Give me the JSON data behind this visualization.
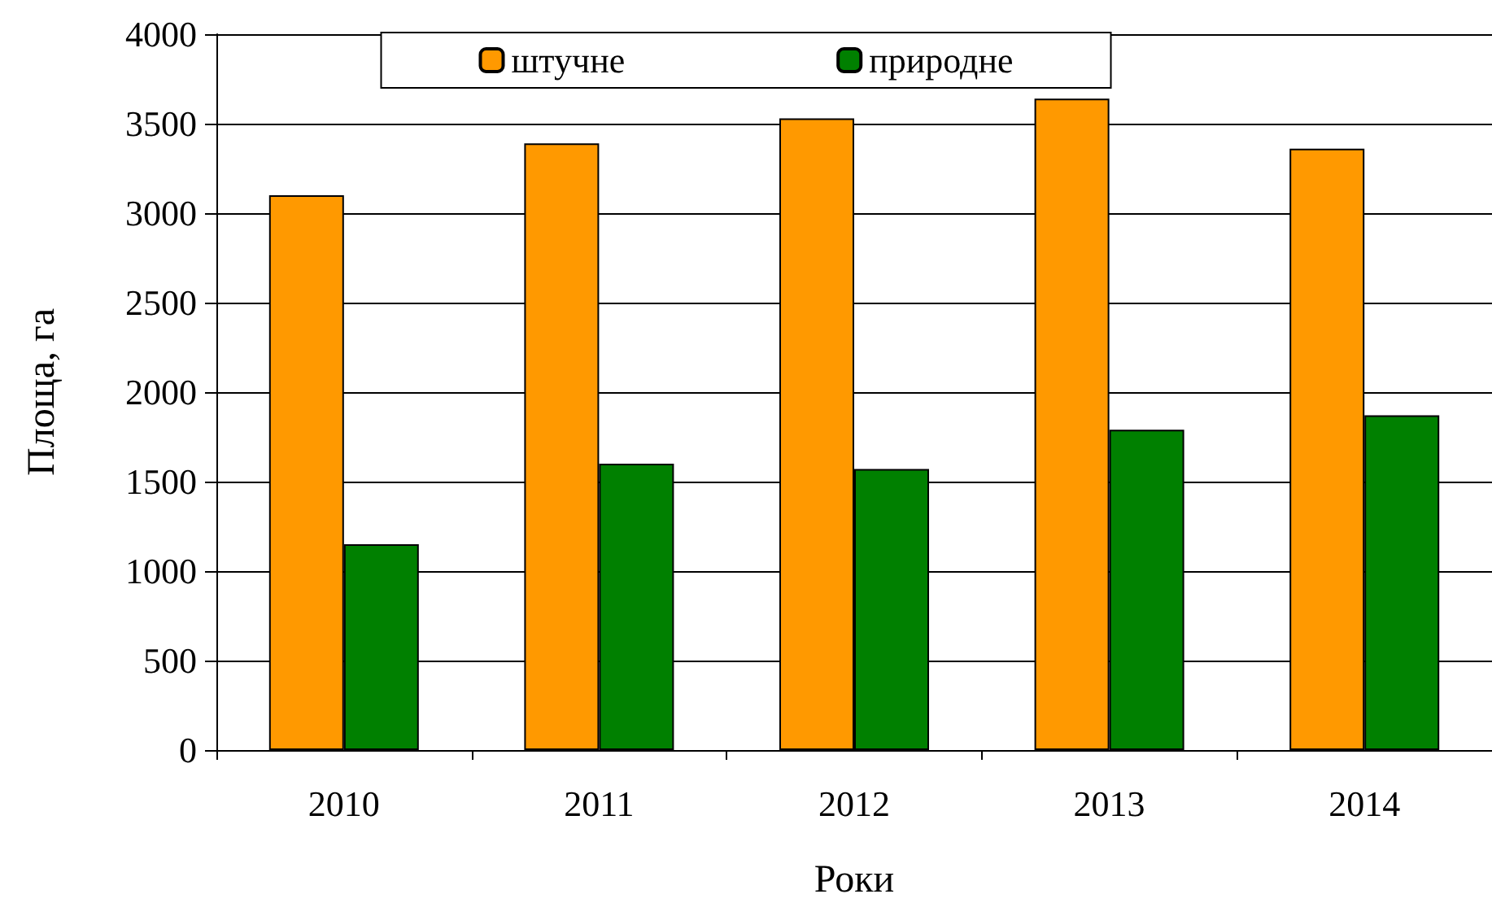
{
  "chart_data": {
    "type": "bar",
    "xlabel": "Роки",
    "ylabel": "Площа, га",
    "categories": [
      "2010",
      "2011",
      "2012",
      "2013",
      "2014"
    ],
    "series": [
      {
        "name": "штучне",
        "color": "#ff9900",
        "values": [
          3100,
          3390,
          3530,
          3640,
          3360
        ]
      },
      {
        "name": "природне",
        "color": "#008000",
        "values": [
          1150,
          1600,
          1570,
          1790,
          1870
        ]
      }
    ],
    "ylim": [
      0,
      4000
    ],
    "yticks": [
      0,
      500,
      1000,
      1500,
      2000,
      2500,
      3000,
      3500,
      4000
    ],
    "grid": "y",
    "legend": "top"
  }
}
